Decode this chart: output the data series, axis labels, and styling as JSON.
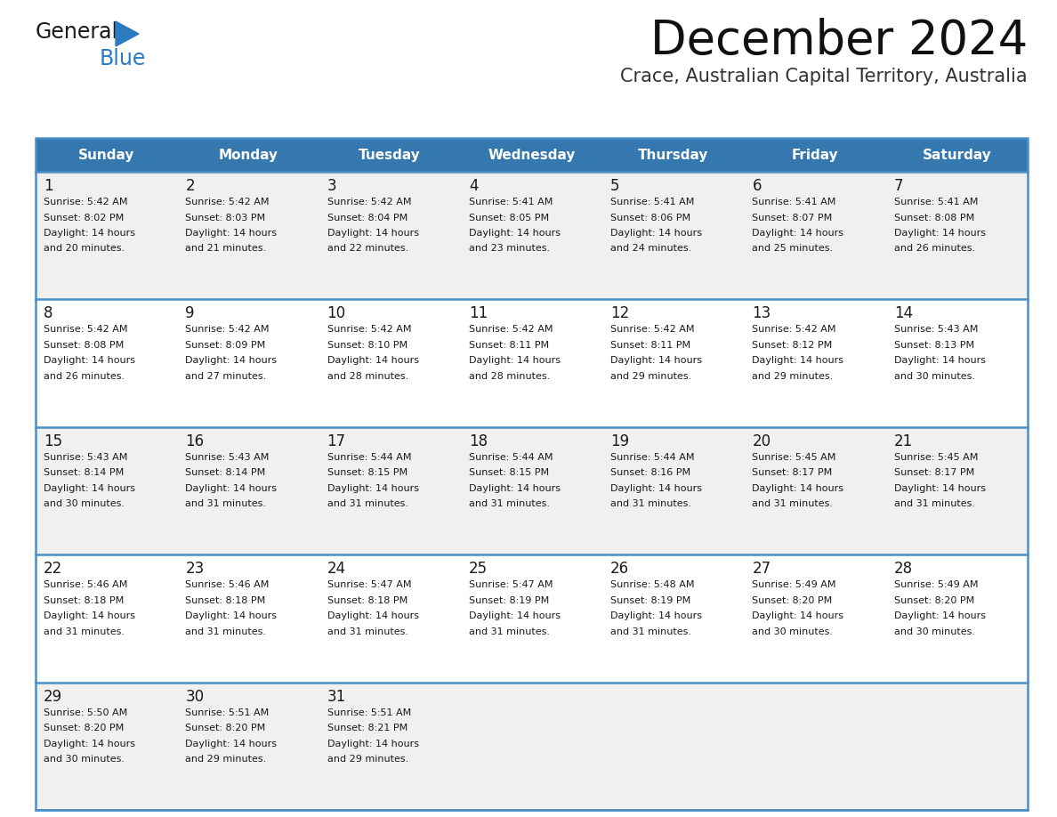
{
  "title": "December 2024",
  "subtitle": "Crace, Australian Capital Territory, Australia",
  "header_color": "#3578b0",
  "header_text_color": "#ffffff",
  "row_bg_even": "#f0f0f0",
  "row_bg_odd": "#ffffff",
  "separator_color": "#4a90c8",
  "text_color": "#1a1a1a",
  "day_names": [
    "Sunday",
    "Monday",
    "Tuesday",
    "Wednesday",
    "Thursday",
    "Friday",
    "Saturday"
  ],
  "logo_general_color": "#1a1a1a",
  "logo_blue_color": "#2a7bc0",
  "calendar_data": [
    [
      {
        "day": 1,
        "sunrise": "5:42 AM",
        "sunset": "8:02 PM",
        "daylight_hours": 14,
        "daylight_minutes": 20
      },
      {
        "day": 2,
        "sunrise": "5:42 AM",
        "sunset": "8:03 PM",
        "daylight_hours": 14,
        "daylight_minutes": 21
      },
      {
        "day": 3,
        "sunrise": "5:42 AM",
        "sunset": "8:04 PM",
        "daylight_hours": 14,
        "daylight_minutes": 22
      },
      {
        "day": 4,
        "sunrise": "5:41 AM",
        "sunset": "8:05 PM",
        "daylight_hours": 14,
        "daylight_minutes": 23
      },
      {
        "day": 5,
        "sunrise": "5:41 AM",
        "sunset": "8:06 PM",
        "daylight_hours": 14,
        "daylight_minutes": 24
      },
      {
        "day": 6,
        "sunrise": "5:41 AM",
        "sunset": "8:07 PM",
        "daylight_hours": 14,
        "daylight_minutes": 25
      },
      {
        "day": 7,
        "sunrise": "5:41 AM",
        "sunset": "8:08 PM",
        "daylight_hours": 14,
        "daylight_minutes": 26
      }
    ],
    [
      {
        "day": 8,
        "sunrise": "5:42 AM",
        "sunset": "8:08 PM",
        "daylight_hours": 14,
        "daylight_minutes": 26
      },
      {
        "day": 9,
        "sunrise": "5:42 AM",
        "sunset": "8:09 PM",
        "daylight_hours": 14,
        "daylight_minutes": 27
      },
      {
        "day": 10,
        "sunrise": "5:42 AM",
        "sunset": "8:10 PM",
        "daylight_hours": 14,
        "daylight_minutes": 28
      },
      {
        "day": 11,
        "sunrise": "5:42 AM",
        "sunset": "8:11 PM",
        "daylight_hours": 14,
        "daylight_minutes": 28
      },
      {
        "day": 12,
        "sunrise": "5:42 AM",
        "sunset": "8:11 PM",
        "daylight_hours": 14,
        "daylight_minutes": 29
      },
      {
        "day": 13,
        "sunrise": "5:42 AM",
        "sunset": "8:12 PM",
        "daylight_hours": 14,
        "daylight_minutes": 29
      },
      {
        "day": 14,
        "sunrise": "5:43 AM",
        "sunset": "8:13 PM",
        "daylight_hours": 14,
        "daylight_minutes": 30
      }
    ],
    [
      {
        "day": 15,
        "sunrise": "5:43 AM",
        "sunset": "8:14 PM",
        "daylight_hours": 14,
        "daylight_minutes": 30
      },
      {
        "day": 16,
        "sunrise": "5:43 AM",
        "sunset": "8:14 PM",
        "daylight_hours": 14,
        "daylight_minutes": 31
      },
      {
        "day": 17,
        "sunrise": "5:44 AM",
        "sunset": "8:15 PM",
        "daylight_hours": 14,
        "daylight_minutes": 31
      },
      {
        "day": 18,
        "sunrise": "5:44 AM",
        "sunset": "8:15 PM",
        "daylight_hours": 14,
        "daylight_minutes": 31
      },
      {
        "day": 19,
        "sunrise": "5:44 AM",
        "sunset": "8:16 PM",
        "daylight_hours": 14,
        "daylight_minutes": 31
      },
      {
        "day": 20,
        "sunrise": "5:45 AM",
        "sunset": "8:17 PM",
        "daylight_hours": 14,
        "daylight_minutes": 31
      },
      {
        "day": 21,
        "sunrise": "5:45 AM",
        "sunset": "8:17 PM",
        "daylight_hours": 14,
        "daylight_minutes": 31
      }
    ],
    [
      {
        "day": 22,
        "sunrise": "5:46 AM",
        "sunset": "8:18 PM",
        "daylight_hours": 14,
        "daylight_minutes": 31
      },
      {
        "day": 23,
        "sunrise": "5:46 AM",
        "sunset": "8:18 PM",
        "daylight_hours": 14,
        "daylight_minutes": 31
      },
      {
        "day": 24,
        "sunrise": "5:47 AM",
        "sunset": "8:18 PM",
        "daylight_hours": 14,
        "daylight_minutes": 31
      },
      {
        "day": 25,
        "sunrise": "5:47 AM",
        "sunset": "8:19 PM",
        "daylight_hours": 14,
        "daylight_minutes": 31
      },
      {
        "day": 26,
        "sunrise": "5:48 AM",
        "sunset": "8:19 PM",
        "daylight_hours": 14,
        "daylight_minutes": 31
      },
      {
        "day": 27,
        "sunrise": "5:49 AM",
        "sunset": "8:20 PM",
        "daylight_hours": 14,
        "daylight_minutes": 30
      },
      {
        "day": 28,
        "sunrise": "5:49 AM",
        "sunset": "8:20 PM",
        "daylight_hours": 14,
        "daylight_minutes": 30
      }
    ],
    [
      {
        "day": 29,
        "sunrise": "5:50 AM",
        "sunset": "8:20 PM",
        "daylight_hours": 14,
        "daylight_minutes": 30
      },
      {
        "day": 30,
        "sunrise": "5:51 AM",
        "sunset": "8:20 PM",
        "daylight_hours": 14,
        "daylight_minutes": 29
      },
      {
        "day": 31,
        "sunrise": "5:51 AM",
        "sunset": "8:21 PM",
        "daylight_hours": 14,
        "daylight_minutes": 29
      },
      null,
      null,
      null,
      null
    ]
  ],
  "n_rows": 5,
  "n_cols": 7
}
